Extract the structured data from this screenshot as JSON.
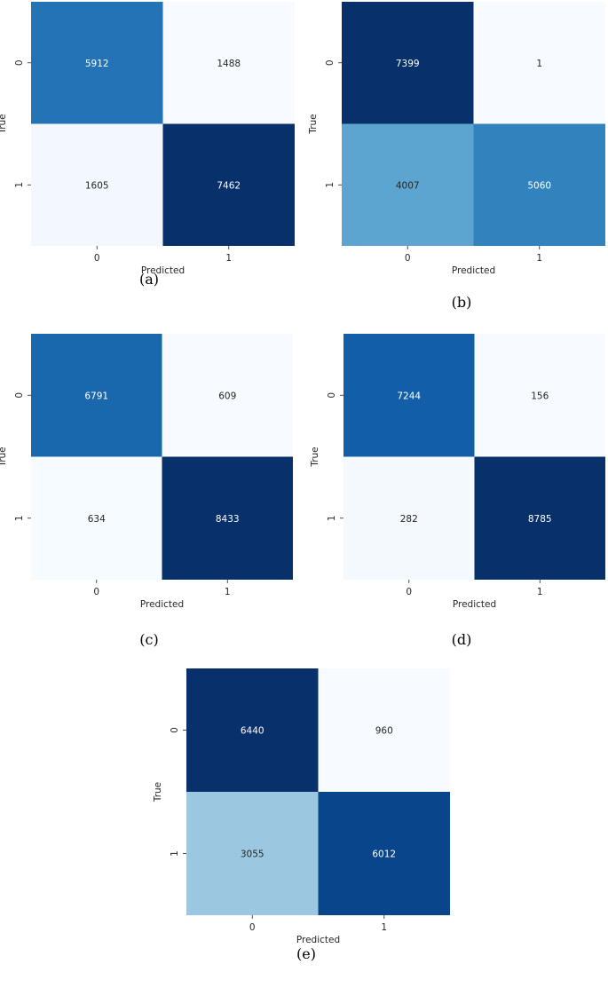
{
  "chart_data": [
    {
      "type": "heatmap",
      "caption": "(a)",
      "xlabel": "Predicted",
      "ylabel": "True",
      "x_ticks": [
        "0",
        "1"
      ],
      "y_ticks": [
        "0",
        "1"
      ],
      "values": [
        [
          5912,
          1488
        ],
        [
          1605,
          7462
        ]
      ],
      "colormap": "Blues",
      "annotated": true,
      "colorbar": false
    },
    {
      "type": "heatmap",
      "caption": "(b)",
      "xlabel": "Predicted",
      "ylabel": "True",
      "x_ticks": [
        "0",
        "1"
      ],
      "y_ticks": [
        "0",
        "1"
      ],
      "values": [
        [
          7399,
          1
        ],
        [
          4007,
          5060
        ]
      ],
      "colormap": "Blues",
      "annotated": true,
      "colorbar": false
    },
    {
      "type": "heatmap",
      "caption": "(c)",
      "xlabel": "Predicted",
      "ylabel": "True",
      "x_ticks": [
        "0",
        "1"
      ],
      "y_ticks": [
        "0",
        "1"
      ],
      "values": [
        [
          6791,
          609
        ],
        [
          634,
          8433
        ]
      ],
      "colormap": "Blues",
      "annotated": true,
      "colorbar": false
    },
    {
      "type": "heatmap",
      "caption": "(d)",
      "xlabel": "Predicted",
      "ylabel": "True",
      "x_ticks": [
        "0",
        "1"
      ],
      "y_ticks": [
        "0",
        "1"
      ],
      "values": [
        [
          7244,
          156
        ],
        [
          282,
          8785
        ]
      ],
      "colormap": "Blues",
      "annotated": true,
      "colorbar": false
    },
    {
      "type": "heatmap",
      "caption": "(e)",
      "xlabel": "Predicted",
      "ylabel": "True",
      "x_ticks": [
        "0",
        "1"
      ],
      "y_ticks": [
        "0",
        "1"
      ],
      "values": [
        [
          6440,
          960
        ],
        [
          3055,
          6012
        ]
      ],
      "colormap": "Blues",
      "annotated": true,
      "colorbar": false
    }
  ]
}
